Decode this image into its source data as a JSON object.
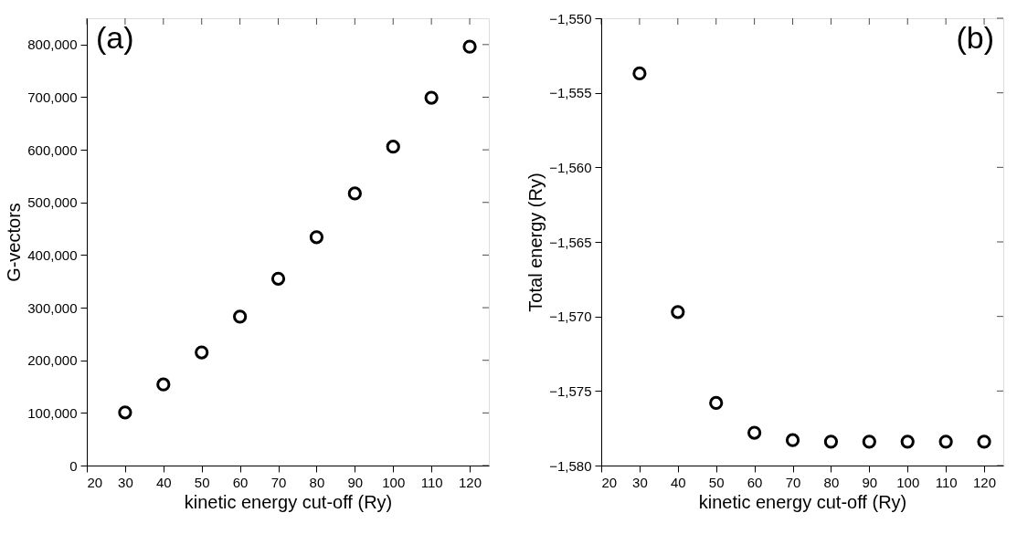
{
  "chart_data": [
    {
      "type": "scatter",
      "xlabel": "kinetic energy cut-off (Ry)",
      "ylabel": "G-vectors",
      "annotations": [
        "(a)"
      ],
      "marker": "circle",
      "grid": false,
      "x": [
        30,
        40,
        50,
        60,
        70,
        80,
        90,
        100,
        110,
        120
      ],
      "series": [
        {
          "color": "#000000",
          "values": [
            101000,
            154000,
            215000,
            283000,
            355000,
            434000,
            517000,
            606000,
            699000,
            796000
          ]
        }
      ],
      "xlim": [
        20,
        125
      ],
      "xticks": [
        20,
        30,
        40,
        50,
        60,
        70,
        80,
        90,
        100,
        110,
        120
      ],
      "ylim": [
        0,
        850000
      ],
      "yticks": [
        0,
        {
          "value": 100000,
          "label": "100,000"
        },
        {
          "value": 200000,
          "label": "200,000"
        },
        {
          "value": 300000,
          "label": "300,000"
        },
        {
          "value": 400000,
          "label": "400,000"
        },
        {
          "value": 500000,
          "label": "500,000"
        },
        {
          "value": 600000,
          "label": "600,000"
        },
        {
          "value": 700000,
          "label": "700,000"
        },
        {
          "value": 800000,
          "label": "800,000"
        }
      ]
    },
    {
      "type": "scatter",
      "xlabel": "kinetic energy cut-off (Ry)",
      "ylabel": "Total energy (Ry)",
      "annotations": [
        "(b)"
      ],
      "marker": "circle",
      "grid": false,
      "x": [
        30,
        40,
        50,
        60,
        70,
        80,
        90,
        100,
        110,
        120
      ],
      "series": [
        {
          "color": "#000000",
          "values": [
            -1553.7,
            -1569.7,
            -1575.8,
            -1577.8,
            -1578.3,
            -1578.4,
            -1578.4,
            -1578.4,
            -1578.4,
            -1578.4
          ]
        }
      ],
      "xlim": [
        20,
        125
      ],
      "xticks": [
        20,
        30,
        40,
        50,
        60,
        70,
        80,
        90,
        100,
        110,
        120
      ],
      "ylim": [
        -1580,
        -1550
      ],
      "yticks": [
        {
          "value": -1580,
          "label": "−1,580"
        },
        {
          "value": -1575,
          "label": "−1,575"
        },
        {
          "value": -1570,
          "label": "−1,570"
        },
        {
          "value": -1565,
          "label": "−1,565"
        },
        {
          "value": -1560,
          "label": "−1,560"
        },
        {
          "value": -1555,
          "label": "−1,555"
        },
        {
          "value": -1550,
          "label": "−1,550"
        }
      ]
    }
  ]
}
